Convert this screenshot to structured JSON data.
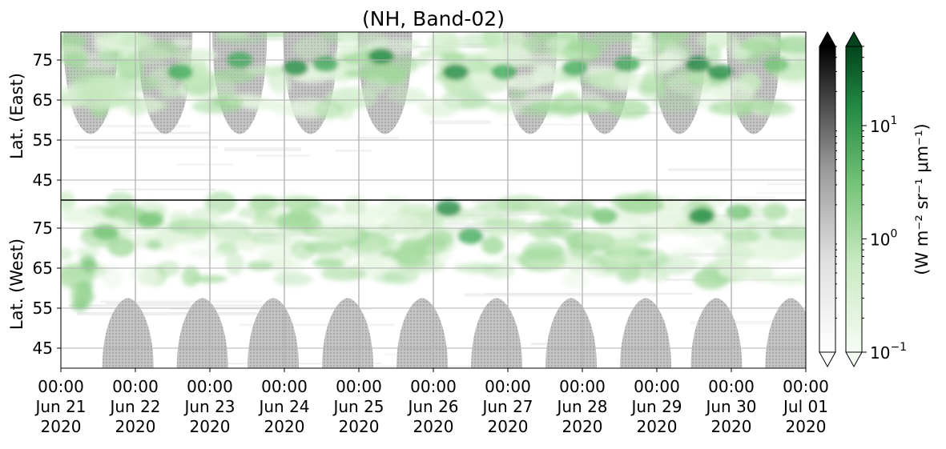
{
  "chart_data": {
    "type": "heatmap",
    "title": "(NH, Band-02)",
    "panels": [
      {
        "name": "East",
        "ylabel": "Lat. (East)",
        "yticks": [
          "45",
          "55",
          "65",
          "75"
        ],
        "y_range": [
          40,
          82
        ]
      },
      {
        "name": "West",
        "ylabel": "Lat. (West)",
        "yticks": [
          "75",
          "65",
          "55",
          "45"
        ],
        "y_range": [
          82,
          40
        ]
      }
    ],
    "x_ticks": [
      {
        "time": "00:00",
        "day": "Jun 21",
        "year": "2020"
      },
      {
        "time": "00:00",
        "day": "Jun 22",
        "year": "2020"
      },
      {
        "time": "00:00",
        "day": "Jun 23",
        "year": "2020"
      },
      {
        "time": "00:00",
        "day": "Jun 24",
        "year": "2020"
      },
      {
        "time": "00:00",
        "day": "Jun 25",
        "year": "2020"
      },
      {
        "time": "00:00",
        "day": "Jun 26",
        "year": "2020"
      },
      {
        "time": "00:00",
        "day": "Jun 27",
        "year": "2020"
      },
      {
        "time": "00:00",
        "day": "Jun 28",
        "year": "2020"
      },
      {
        "time": "00:00",
        "day": "Jun 29",
        "year": "2020"
      },
      {
        "time": "00:00",
        "day": "Jun 30",
        "year": "2020"
      },
      {
        "time": "00:00",
        "day": "Jul 01",
        "year": "2020"
      }
    ],
    "colorbar": {
      "scale": "log",
      "range": [
        0.1,
        50
      ],
      "colormaps": [
        "Greys",
        "Greens"
      ],
      "extend": "both",
      "label": "(W m⁻² sr⁻¹ μm⁻¹)",
      "ticks": [
        {
          "value": 10,
          "base": "10",
          "exp": "1"
        },
        {
          "value": 1,
          "base": "10",
          "exp": "0"
        },
        {
          "value": 0.1,
          "base": "10",
          "exp": "−1"
        }
      ]
    },
    "grid": true,
    "no_data_color": "#bebebe",
    "accent_color": "#00441b"
  }
}
